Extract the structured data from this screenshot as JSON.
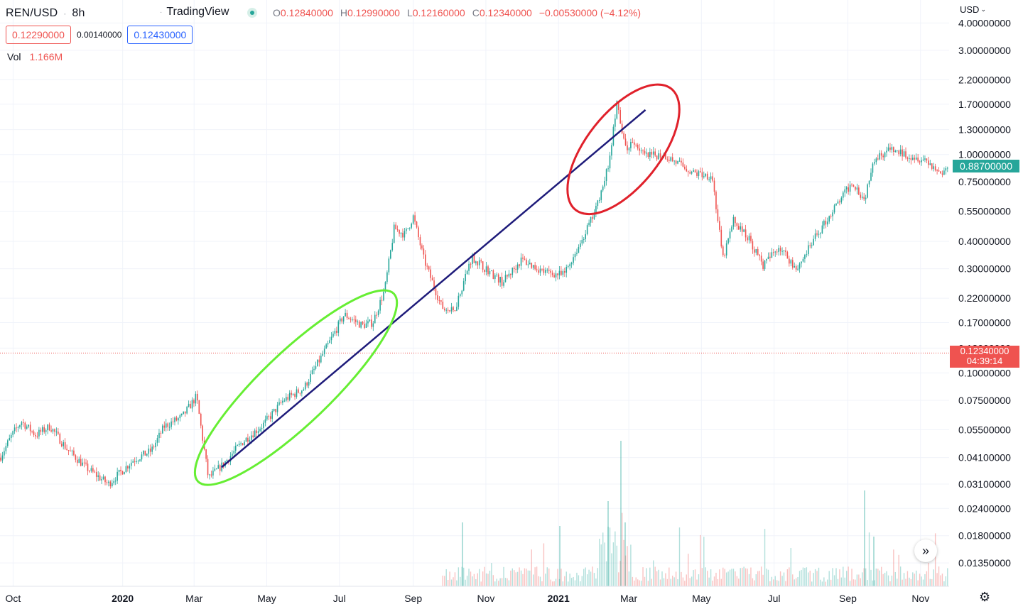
{
  "header": {
    "symbol": "REN/USD",
    "interval": "8h",
    "brand": "TradingView",
    "ohlc": {
      "o_label": "O",
      "o": "0.12840000",
      "h_label": "H",
      "h": "0.12990000",
      "l_label": "L",
      "l": "0.12160000",
      "c_label": "C",
      "c": "0.12340000",
      "change": "−0.00530000 (−4.12%)"
    },
    "sell_price": "0.12290000",
    "spread": "0.00140000",
    "buy_price": "0.12430000",
    "vol_label": "Vol",
    "vol_value": "1.166M"
  },
  "price_axis": {
    "currency": "USD",
    "current_price": "0.12340000",
    "countdown": "04:39:14",
    "marker_price": "0.88700000"
  },
  "colors": {
    "up": "#26a69a",
    "down": "#ef5350",
    "trendline": "#1e1b7a",
    "ellipse_green": "#66ee33",
    "ellipse_red": "#e0212b"
  },
  "icons": {
    "forward": "double-chevron-right-icon",
    "settings": "gear-icon",
    "currency_caret": "chevron-down-icon"
  },
  "chart_data": {
    "type": "candlestick",
    "scale": "log",
    "x_ticks": [
      {
        "label": "Oct",
        "bold": false
      },
      {
        "label": "2020",
        "bold": true
      },
      {
        "label": "Mar",
        "bold": false
      },
      {
        "label": "May",
        "bold": false
      },
      {
        "label": "Jul",
        "bold": false
      },
      {
        "label": "Sep",
        "bold": false
      },
      {
        "label": "Nov",
        "bold": false
      },
      {
        "label": "2021",
        "bold": true
      },
      {
        "label": "Mar",
        "bold": false
      },
      {
        "label": "May",
        "bold": false
      },
      {
        "label": "Jul",
        "bold": false
      },
      {
        "label": "Sep",
        "bold": false
      },
      {
        "label": "Nov",
        "bold": false
      }
    ],
    "y_ticks": [
      "4.00000000",
      "3.00000000",
      "2.20000000",
      "1.70000000",
      "1.30000000",
      "1.00000000",
      "0.75000000",
      "0.55000000",
      "0.40000000",
      "0.30000000",
      "0.22000000",
      "0.17000000",
      "0.13000000",
      "0.10000000",
      "0.07500000",
      "0.05500000",
      "0.04100000",
      "0.03100000",
      "0.02400000",
      "0.01800000",
      "0.01350000"
    ],
    "ylim": [
      0.0098,
      4.8
    ],
    "price_path": [
      [
        "2019-09-20",
        0.041
      ],
      [
        "2019-09-30",
        0.052
      ],
      [
        "2019-10-08",
        0.06
      ],
      [
        "2019-10-20",
        0.052
      ],
      [
        "2019-11-01",
        0.057
      ],
      [
        "2019-11-15",
        0.045
      ],
      [
        "2019-12-01",
        0.037
      ],
      [
        "2019-12-20",
        0.031
      ],
      [
        "2020-01-10",
        0.04
      ],
      [
        "2020-01-25",
        0.044
      ],
      [
        "2020-02-05",
        0.057
      ],
      [
        "2020-02-20",
        0.063
      ],
      [
        "2020-03-03",
        0.078
      ],
      [
        "2020-03-13",
        0.033
      ],
      [
        "2020-03-25",
        0.038
      ],
      [
        "2020-04-10",
        0.048
      ],
      [
        "2020-04-28",
        0.058
      ],
      [
        "2020-05-15",
        0.075
      ],
      [
        "2020-06-01",
        0.085
      ],
      [
        "2020-06-20",
        0.13
      ],
      [
        "2020-07-05",
        0.185
      ],
      [
        "2020-07-20",
        0.165
      ],
      [
        "2020-07-29",
        0.17
      ],
      [
        "2020-08-08",
        0.24
      ],
      [
        "2020-08-16",
        0.46
      ],
      [
        "2020-08-25",
        0.43
      ],
      [
        "2020-09-01",
        0.52
      ],
      [
        "2020-09-10",
        0.33
      ],
      [
        "2020-09-25",
        0.2
      ],
      [
        "2020-10-05",
        0.19
      ],
      [
        "2020-10-20",
        0.34
      ],
      [
        "2020-11-01",
        0.3
      ],
      [
        "2020-11-15",
        0.26
      ],
      [
        "2020-12-01",
        0.33
      ],
      [
        "2020-12-20",
        0.29
      ],
      [
        "2021-01-05",
        0.28
      ],
      [
        "2021-01-18",
        0.38
      ],
      [
        "2021-02-01",
        0.55
      ],
      [
        "2021-02-12",
        0.9
      ],
      [
        "2021-02-19",
        1.7
      ],
      [
        "2021-02-26",
        1.05
      ],
      [
        "2021-03-05",
        1.15
      ],
      [
        "2021-03-15",
        0.98
      ],
      [
        "2021-03-30",
        1.0
      ],
      [
        "2021-04-10",
        0.92
      ],
      [
        "2021-04-25",
        0.82
      ],
      [
        "2021-05-10",
        0.8
      ],
      [
        "2021-05-19",
        0.33
      ],
      [
        "2021-05-28",
        0.5
      ],
      [
        "2021-06-10",
        0.41
      ],
      [
        "2021-06-22",
        0.31
      ],
      [
        "2021-07-05",
        0.38
      ],
      [
        "2021-07-20",
        0.3
      ],
      [
        "2021-08-05",
        0.42
      ],
      [
        "2021-08-20",
        0.56
      ],
      [
        "2021-09-05",
        0.75
      ],
      [
        "2021-09-15",
        0.62
      ],
      [
        "2021-09-22",
        0.95
      ],
      [
        "2021-10-05",
        1.05
      ],
      [
        "2021-10-20",
        1.0
      ],
      [
        "2021-11-05",
        0.95
      ],
      [
        "2021-11-18",
        0.82
      ],
      [
        "2021-11-25",
        0.87
      ]
    ],
    "annotations": [
      {
        "kind": "trendline",
        "from": [
          "2020-03-24",
          0.037
        ],
        "to": [
          "2021-03-15",
          1.6
        ]
      },
      {
        "kind": "ellipse",
        "color": "green",
        "from": [
          "2020-03-12",
          0.035
        ],
        "to": [
          "2020-08-08",
          0.21
        ]
      },
      {
        "kind": "ellipse",
        "color": "red",
        "from": [
          "2021-01-22",
          0.62
        ],
        "to": [
          "2021-03-30",
          1.8
        ]
      }
    ]
  }
}
